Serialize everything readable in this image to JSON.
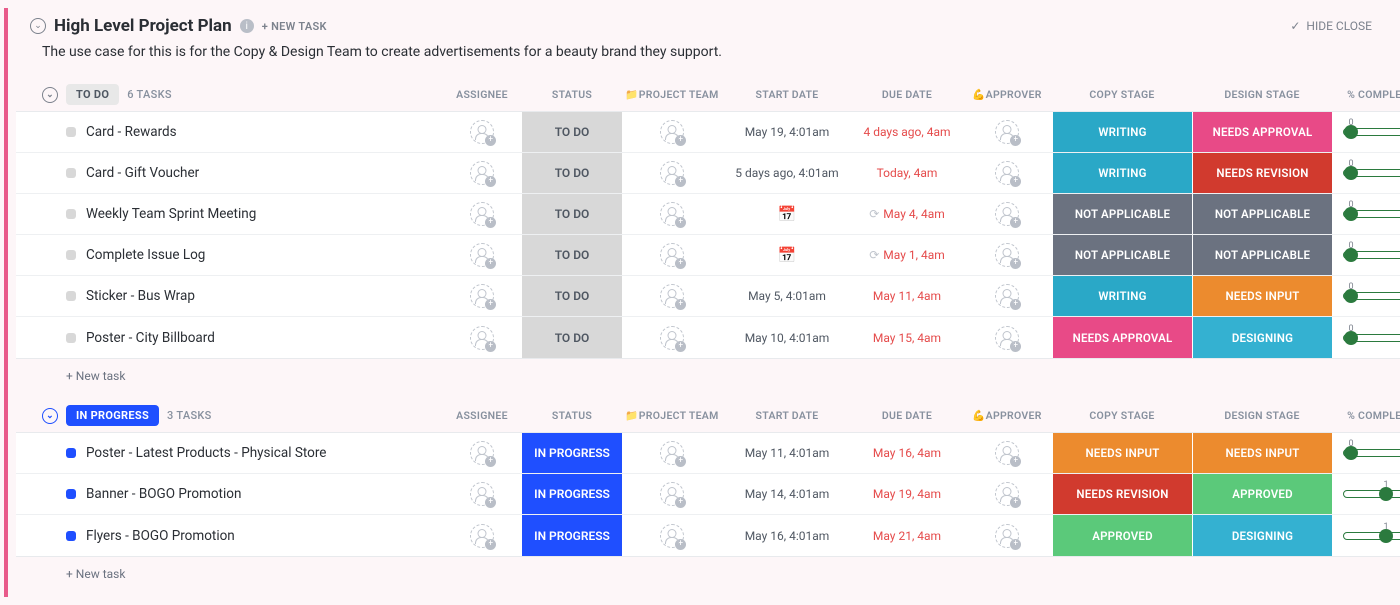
{
  "colors": {
    "accent_border": "#e85a8a",
    "writing": "#2aa8c7",
    "needs_approval": "#e84a87",
    "needs_revision": "#d13a2e",
    "not_applicable": "#6b7280",
    "needs_input": "#ec8b2e",
    "designing": "#34b1d1",
    "approved": "#5bc97a",
    "todo_status": "#d8d8d8",
    "inprogress_status": "#1f4fff",
    "progress_green": "#2b7a3e"
  },
  "header": {
    "title": "High Level Project Plan",
    "new_task": "+ NEW TASK",
    "hide_closed": "HIDE CLOSE",
    "description": "The use case for this is for the Copy & Design Team to create advertisements for a beauty brand they support."
  },
  "columns": {
    "assignee": "ASSIGNEE",
    "status": "STATUS",
    "project_team": "📁PROJECT TEAM",
    "start_date": "START DATE",
    "due_date": "DUE DATE",
    "approver": "💪APPROVER",
    "copy_stage": "COPY STAGE",
    "design_stage": "DESIGN STAGE",
    "completion": "% COMPLETION"
  },
  "new_task_label": "+ New task",
  "groups": [
    {
      "name": "TO DO",
      "status_key": "todo",
      "task_count": "6 TASKS",
      "tasks": [
        {
          "name": "Card - Rewards",
          "status": "TO DO",
          "start_date": "May 19, 4:01am",
          "due_date": "4 days ago, 4am",
          "due_overdue": true,
          "copy_stage": {
            "label": "WRITING",
            "color": "#2aa8c7"
          },
          "design_stage": {
            "label": "NEEDS APPROVAL",
            "color": "#e84a87"
          },
          "progress": 0
        },
        {
          "name": "Card - Gift Voucher",
          "status": "TO DO",
          "start_date": "5 days ago, 4:01am",
          "due_date": "Today, 4am",
          "due_overdue": true,
          "copy_stage": {
            "label": "WRITING",
            "color": "#2aa8c7"
          },
          "design_stage": {
            "label": "NEEDS REVISION",
            "color": "#d13a2e"
          },
          "progress": 0
        },
        {
          "name": "Weekly Team Sprint Meeting",
          "status": "TO DO",
          "start_date_icon": true,
          "due_date": "May 4, 4am",
          "due_overdue": true,
          "recurring": true,
          "copy_stage": {
            "label": "NOT APPLICABLE",
            "color": "#6b7280"
          },
          "design_stage": {
            "label": "NOT APPLICABLE",
            "color": "#6b7280"
          },
          "progress": 0
        },
        {
          "name": "Complete Issue Log",
          "status": "TO DO",
          "start_date_icon": true,
          "due_date": "May 1, 4am",
          "due_overdue": true,
          "recurring": true,
          "copy_stage": {
            "label": "NOT APPLICABLE",
            "color": "#6b7280"
          },
          "design_stage": {
            "label": "NOT APPLICABLE",
            "color": "#6b7280"
          },
          "progress": 0
        },
        {
          "name": "Sticker - Bus Wrap",
          "status": "TO DO",
          "start_date": "May 5, 4:01am",
          "due_date": "May 11, 4am",
          "due_overdue": true,
          "copy_stage": {
            "label": "WRITING",
            "color": "#2aa8c7"
          },
          "design_stage": {
            "label": "NEEDS INPUT",
            "color": "#ec8b2e"
          },
          "progress": 0
        },
        {
          "name": "Poster - City Billboard",
          "status": "TO DO",
          "start_date": "May 10, 4:01am",
          "due_date": "May 15, 4am",
          "due_overdue": true,
          "copy_stage": {
            "label": "NEEDS APPROVAL",
            "color": "#e84a87"
          },
          "design_stage": {
            "label": "DESIGNING",
            "color": "#34b1d1"
          },
          "progress": 0
        }
      ]
    },
    {
      "name": "IN PROGRESS",
      "status_key": "inprog",
      "task_count": "3 TASKS",
      "tasks": [
        {
          "name": "Poster - Latest Products - Physical Store",
          "status": "IN PROGRESS",
          "start_date": "May 11, 4:01am",
          "due_date": "May 16, 4am",
          "due_overdue": true,
          "copy_stage": {
            "label": "NEEDS INPUT",
            "color": "#ec8b2e"
          },
          "design_stage": {
            "label": "NEEDS INPUT",
            "color": "#ec8b2e"
          },
          "progress": 0
        },
        {
          "name": "Banner - BOGO Promotion",
          "status": "IN PROGRESS",
          "start_date": "May 14, 4:01am",
          "due_date": "May 19, 4am",
          "due_overdue": true,
          "copy_stage": {
            "label": "NEEDS REVISION",
            "color": "#d13a2e"
          },
          "design_stage": {
            "label": "APPROVED",
            "color": "#5bc97a"
          },
          "progress": 1
        },
        {
          "name": "Flyers - BOGO Promotion",
          "status": "IN PROGRESS",
          "start_date": "May 16, 4:01am",
          "due_date": "May 21, 4am",
          "due_overdue": true,
          "copy_stage": {
            "label": "APPROVED",
            "color": "#5bc97a"
          },
          "design_stage": {
            "label": "DESIGNING",
            "color": "#34b1d1"
          },
          "progress": 1
        }
      ]
    }
  ]
}
